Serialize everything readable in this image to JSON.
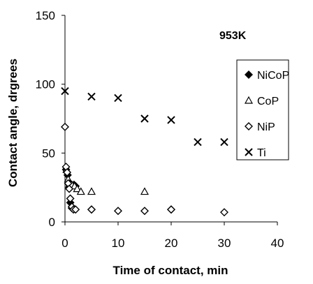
{
  "chart_data": {
    "type": "scatter",
    "xlabel": "Time of contact, min",
    "ylabel": "Contact angle, drgrees",
    "xlim": [
      0,
      40
    ],
    "ylim": [
      0,
      150
    ],
    "x_ticks": [
      "0",
      "10",
      "20",
      "30",
      "40"
    ],
    "y_ticks": [
      "0",
      "50",
      "100",
      "150"
    ],
    "annotation": "953K",
    "grid": false,
    "legend_position": "right",
    "series": [
      {
        "name": "NiCoP",
        "marker": "filled-diamond",
        "points": [
          [
            0.2,
            38
          ],
          [
            0.5,
            34
          ],
          [
            0.8,
            25
          ],
          [
            1.0,
            14
          ],
          [
            1.3,
            10
          ],
          [
            1.7,
            27
          ],
          [
            2.0,
            26
          ],
          [
            5,
            9
          ],
          [
            20,
            9
          ]
        ]
      },
      {
        "name": "CoP",
        "marker": "open-triangle",
        "points": [
          [
            0.3,
            38
          ],
          [
            0.6,
            31
          ],
          [
            0.9,
            28
          ],
          [
            1.3,
            27
          ],
          [
            1.8,
            26
          ],
          [
            2.3,
            24
          ],
          [
            3,
            22
          ],
          [
            5,
            22
          ],
          [
            15,
            22
          ]
        ]
      },
      {
        "name": "NiP",
        "marker": "open-diamond",
        "points": [
          [
            0,
            69
          ],
          [
            0.2,
            40
          ],
          [
            0.4,
            36
          ],
          [
            0.6,
            28
          ],
          [
            0.8,
            24
          ],
          [
            1.0,
            17
          ],
          [
            1.3,
            11
          ],
          [
            1.6,
            9
          ],
          [
            2.0,
            9
          ],
          [
            5,
            9
          ],
          [
            10,
            8
          ],
          [
            15,
            8
          ],
          [
            20,
            9
          ],
          [
            30,
            7
          ]
        ]
      },
      {
        "name": "Ti",
        "marker": "x",
        "points": [
          [
            0,
            95
          ],
          [
            5,
            91
          ],
          [
            10,
            90
          ],
          [
            15,
            75
          ],
          [
            20,
            74
          ],
          [
            25,
            58
          ],
          [
            30,
            58
          ]
        ]
      }
    ]
  }
}
